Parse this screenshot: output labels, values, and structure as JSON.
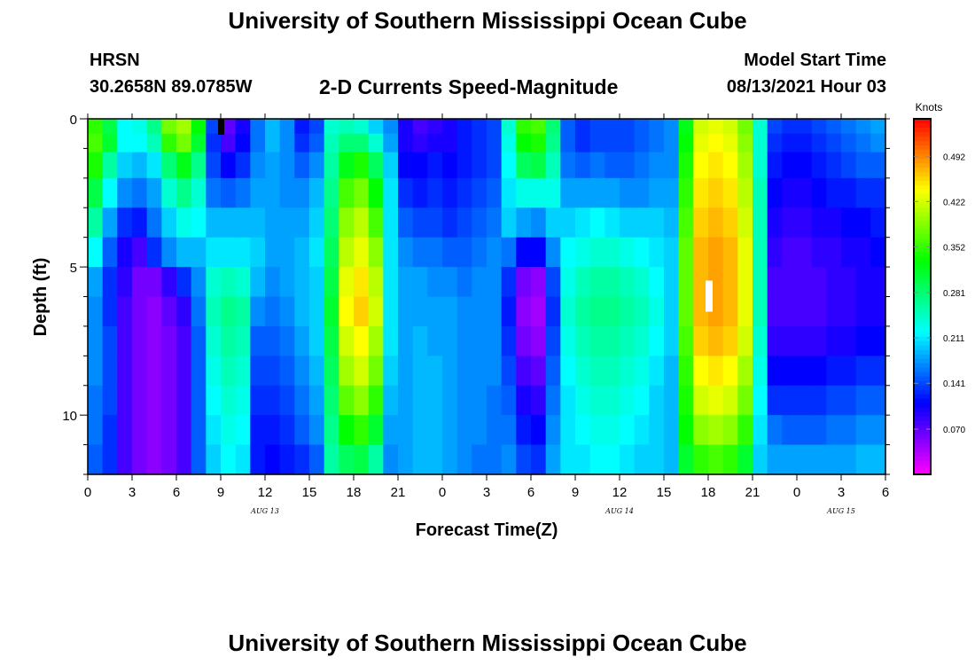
{
  "page": {
    "title_top": "University of Southern Mississippi Ocean Cube",
    "title_bottom": "University of Southern Mississippi Ocean Cube",
    "station": "HRSN",
    "coords": "30.2658N  89.0785W",
    "plot_title": "2-D Currents Speed-Magnitude",
    "model_start_label": "Model Start Time",
    "model_start_value": "08/13/2021 Hour 03"
  },
  "chart_data": {
    "type": "heatmap",
    "xlabel": "Forecast Time(Z)",
    "ylabel": "Depth (ft)",
    "x_tick_labels": [
      "0",
      "3",
      "6",
      "9",
      "12",
      "15",
      "18",
      "21",
      "0",
      "3",
      "6",
      "9",
      "12",
      "15",
      "18",
      "21",
      "0",
      "3",
      "6"
    ],
    "date_labels": [
      {
        "label": "AUG 13",
        "hour": 12
      },
      {
        "label": "AUG 14",
        "hour": 36
      },
      {
        "label": "AUG 15",
        "hour": 51
      }
    ],
    "x_range_hours": [
      0,
      54
    ],
    "y_ticks": [
      0,
      5,
      10
    ],
    "y_range_ft": [
      0,
      12
    ],
    "colorbar": {
      "unit_label": "Knots",
      "tick_labels": [
        "0.492",
        "0.422",
        "0.352",
        "0.281",
        "0.211",
        "0.141",
        "0.070"
      ],
      "tick_values": [
        0.492,
        0.422,
        0.352,
        0.281,
        0.211,
        0.141,
        0.07
      ],
      "range": [
        0.0,
        0.55
      ]
    },
    "markers": [
      {
        "hour": 9,
        "depth_ft": 0.3,
        "color": "#000000"
      },
      {
        "hour": 42,
        "depth_ft": 6,
        "color": "#ffffff"
      }
    ],
    "depth_levels_ft": [
      0.25,
      0.75,
      1.5,
      2.5,
      3.5,
      4.5,
      5.5,
      6.5,
      7.5,
      8.5,
      9.5,
      10.5,
      11.5
    ],
    "profiles": [
      {
        "hour": 0,
        "v": [
          0.35,
          0.36,
          0.34,
          0.3,
          0.26,
          0.22,
          0.18,
          0.17,
          0.17,
          0.17,
          0.16,
          0.16,
          0.15
        ]
      },
      {
        "hour": 1,
        "v": [
          0.3,
          0.31,
          0.26,
          0.22,
          0.18,
          0.15,
          0.13,
          0.13,
          0.14,
          0.14,
          0.14,
          0.13,
          0.13
        ]
      },
      {
        "hour": 2,
        "v": [
          0.22,
          0.22,
          0.2,
          0.17,
          0.13,
          0.1,
          0.09,
          0.08,
          0.08,
          0.08,
          0.08,
          0.08,
          0.08
        ]
      },
      {
        "hour": 3,
        "v": [
          0.23,
          0.22,
          0.19,
          0.16,
          0.12,
          0.08,
          0.06,
          0.06,
          0.06,
          0.06,
          0.06,
          0.06,
          0.06
        ]
      },
      {
        "hour": 4,
        "v": [
          0.27,
          0.25,
          0.21,
          0.18,
          0.16,
          0.13,
          0.06,
          0.05,
          0.05,
          0.05,
          0.05,
          0.05,
          0.05
        ]
      },
      {
        "hour": 5,
        "v": [
          0.38,
          0.35,
          0.28,
          0.24,
          0.2,
          0.17,
          0.09,
          0.07,
          0.06,
          0.06,
          0.06,
          0.06,
          0.06
        ]
      },
      {
        "hour": 6,
        "v": [
          0.4,
          0.38,
          0.32,
          0.27,
          0.23,
          0.19,
          0.13,
          0.09,
          0.08,
          0.08,
          0.08,
          0.08,
          0.08
        ]
      },
      {
        "hour": 7,
        "v": [
          0.33,
          0.31,
          0.27,
          0.24,
          0.22,
          0.19,
          0.17,
          0.16,
          0.15,
          0.15,
          0.15,
          0.15,
          0.15
        ]
      },
      {
        "hour": 8,
        "v": [
          0.14,
          0.13,
          0.14,
          0.16,
          0.19,
          0.21,
          0.24,
          0.25,
          0.24,
          0.23,
          0.22,
          0.21,
          0.2
        ]
      },
      {
        "hour": 9,
        "v": [
          0.07,
          0.08,
          0.11,
          0.15,
          0.19,
          0.21,
          0.25,
          0.27,
          0.26,
          0.25,
          0.24,
          0.23,
          0.22
        ]
      },
      {
        "hour": 10,
        "v": [
          0.1,
          0.11,
          0.13,
          0.16,
          0.19,
          0.21,
          0.24,
          0.26,
          0.25,
          0.24,
          0.23,
          0.22,
          0.21
        ]
      },
      {
        "hour": 11,
        "v": [
          0.16,
          0.16,
          0.17,
          0.18,
          0.19,
          0.2,
          0.19,
          0.17,
          0.15,
          0.14,
          0.13,
          0.12,
          0.12
        ]
      },
      {
        "hour": 12,
        "v": [
          0.19,
          0.19,
          0.18,
          0.18,
          0.18,
          0.18,
          0.17,
          0.16,
          0.15,
          0.14,
          0.13,
          0.12,
          0.11
        ]
      },
      {
        "hour": 13,
        "v": [
          0.17,
          0.17,
          0.17,
          0.17,
          0.18,
          0.18,
          0.18,
          0.17,
          0.16,
          0.15,
          0.14,
          0.13,
          0.12
        ]
      },
      {
        "hour": 14,
        "v": [
          0.12,
          0.13,
          0.15,
          0.17,
          0.18,
          0.19,
          0.19,
          0.19,
          0.18,
          0.17,
          0.16,
          0.15,
          0.13
        ]
      },
      {
        "hour": 15,
        "v": [
          0.14,
          0.15,
          0.17,
          0.19,
          0.2,
          0.21,
          0.2,
          0.2,
          0.2,
          0.19,
          0.18,
          0.17,
          0.15
        ]
      },
      {
        "hour": 16,
        "v": [
          0.24,
          0.25,
          0.26,
          0.27,
          0.28,
          0.29,
          0.3,
          0.31,
          0.3,
          0.29,
          0.28,
          0.27,
          0.26
        ]
      },
      {
        "hour": 17,
        "v": [
          0.25,
          0.28,
          0.32,
          0.36,
          0.39,
          0.41,
          0.43,
          0.44,
          0.42,
          0.4,
          0.37,
          0.33,
          0.29
        ]
      },
      {
        "hour": 18,
        "v": [
          0.24,
          0.28,
          0.34,
          0.38,
          0.41,
          0.43,
          0.45,
          0.46,
          0.44,
          0.42,
          0.39,
          0.35,
          0.3
        ]
      },
      {
        "hour": 19,
        "v": [
          0.2,
          0.24,
          0.29,
          0.33,
          0.36,
          0.39,
          0.41,
          0.42,
          0.4,
          0.38,
          0.35,
          0.31,
          0.26
        ]
      },
      {
        "hour": 20,
        "v": [
          0.17,
          0.18,
          0.2,
          0.21,
          0.21,
          0.21,
          0.21,
          0.21,
          0.21,
          0.2,
          0.19,
          0.18,
          0.17
        ]
      },
      {
        "hour": 21,
        "v": [
          0.1,
          0.1,
          0.11,
          0.13,
          0.15,
          0.17,
          0.18,
          0.18,
          0.18,
          0.18,
          0.18,
          0.18,
          0.18
        ]
      },
      {
        "hour": 22,
        "v": [
          0.08,
          0.09,
          0.11,
          0.12,
          0.14,
          0.16,
          0.18,
          0.18,
          0.19,
          0.19,
          0.19,
          0.19,
          0.19
        ]
      },
      {
        "hour": 23,
        "v": [
          0.09,
          0.1,
          0.12,
          0.13,
          0.14,
          0.16,
          0.17,
          0.18,
          0.18,
          0.19,
          0.19,
          0.19,
          0.19
        ]
      },
      {
        "hour": 24,
        "v": [
          0.1,
          0.1,
          0.11,
          0.12,
          0.13,
          0.15,
          0.17,
          0.18,
          0.18,
          0.18,
          0.18,
          0.18,
          0.18
        ]
      },
      {
        "hour": 25,
        "v": [
          0.12,
          0.12,
          0.12,
          0.13,
          0.14,
          0.15,
          0.16,
          0.17,
          0.17,
          0.17,
          0.17,
          0.17,
          0.17
        ]
      },
      {
        "hour": 26,
        "v": [
          0.13,
          0.13,
          0.13,
          0.14,
          0.15,
          0.16,
          0.17,
          0.17,
          0.17,
          0.17,
          0.17,
          0.17,
          0.16
        ]
      },
      {
        "hour": 27,
        "v": [
          0.14,
          0.14,
          0.14,
          0.15,
          0.16,
          0.17,
          0.17,
          0.17,
          0.17,
          0.17,
          0.16,
          0.16,
          0.16
        ]
      },
      {
        "hour": 28,
        "v": [
          0.24,
          0.23,
          0.22,
          0.21,
          0.2,
          0.16,
          0.13,
          0.12,
          0.13,
          0.14,
          0.15,
          0.16,
          0.17
        ]
      },
      {
        "hour": 29,
        "v": [
          0.35,
          0.33,
          0.29,
          0.23,
          0.18,
          0.11,
          0.06,
          0.05,
          0.06,
          0.08,
          0.1,
          0.12,
          0.14
        ]
      },
      {
        "hour": 30,
        "v": [
          0.36,
          0.34,
          0.3,
          0.23,
          0.17,
          0.11,
          0.05,
          0.04,
          0.05,
          0.07,
          0.09,
          0.11,
          0.13
        ]
      },
      {
        "hour": 31,
        "v": [
          0.28,
          0.27,
          0.25,
          0.23,
          0.2,
          0.17,
          0.14,
          0.13,
          0.14,
          0.15,
          0.16,
          0.17,
          0.18
        ]
      },
      {
        "hour": 32,
        "v": [
          0.15,
          0.15,
          0.16,
          0.18,
          0.2,
          0.22,
          0.23,
          0.24,
          0.23,
          0.22,
          0.21,
          0.21,
          0.21
        ]
      },
      {
        "hour": 33,
        "v": [
          0.13,
          0.13,
          0.15,
          0.18,
          0.21,
          0.23,
          0.25,
          0.26,
          0.25,
          0.24,
          0.23,
          0.22,
          0.21
        ]
      },
      {
        "hour": 34,
        "v": [
          0.14,
          0.14,
          0.16,
          0.18,
          0.22,
          0.24,
          0.26,
          0.27,
          0.26,
          0.25,
          0.24,
          0.23,
          0.22
        ]
      },
      {
        "hour": 35,
        "v": [
          0.14,
          0.14,
          0.15,
          0.18,
          0.21,
          0.24,
          0.26,
          0.27,
          0.26,
          0.25,
          0.24,
          0.23,
          0.22
        ]
      },
      {
        "hour": 36,
        "v": [
          0.14,
          0.14,
          0.15,
          0.17,
          0.2,
          0.23,
          0.25,
          0.26,
          0.25,
          0.24,
          0.23,
          0.22,
          0.21
        ]
      },
      {
        "hour": 37,
        "v": [
          0.15,
          0.15,
          0.16,
          0.17,
          0.2,
          0.22,
          0.24,
          0.25,
          0.24,
          0.23,
          0.22,
          0.21,
          0.2
        ]
      },
      {
        "hour": 38,
        "v": [
          0.16,
          0.16,
          0.17,
          0.18,
          0.2,
          0.21,
          0.22,
          0.23,
          0.22,
          0.21,
          0.2,
          0.2,
          0.2
        ]
      },
      {
        "hour": 39,
        "v": [
          0.17,
          0.17,
          0.17,
          0.18,
          0.19,
          0.2,
          0.2,
          0.2,
          0.2,
          0.19,
          0.19,
          0.19,
          0.19
        ]
      },
      {
        "hour": 40,
        "v": [
          0.32,
          0.33,
          0.34,
          0.35,
          0.36,
          0.37,
          0.37,
          0.37,
          0.36,
          0.35,
          0.34,
          0.33,
          0.31
        ]
      },
      {
        "hour": 41,
        "v": [
          0.42,
          0.43,
          0.44,
          0.45,
          0.46,
          0.47,
          0.47,
          0.47,
          0.46,
          0.44,
          0.42,
          0.39,
          0.35
        ]
      },
      {
        "hour": 42,
        "v": [
          0.43,
          0.44,
          0.45,
          0.46,
          0.47,
          0.48,
          0.48,
          0.48,
          0.47,
          0.45,
          0.43,
          0.4,
          0.36
        ]
      },
      {
        "hour": 43,
        "v": [
          0.42,
          0.43,
          0.44,
          0.45,
          0.46,
          0.47,
          0.47,
          0.47,
          0.46,
          0.44,
          0.42,
          0.39,
          0.35
        ]
      },
      {
        "hour": 44,
        "v": [
          0.38,
          0.39,
          0.4,
          0.41,
          0.42,
          0.43,
          0.43,
          0.43,
          0.42,
          0.4,
          0.38,
          0.35,
          0.31
        ]
      },
      {
        "hour": 45,
        "v": [
          0.24,
          0.24,
          0.24,
          0.25,
          0.25,
          0.25,
          0.25,
          0.25,
          0.24,
          0.23,
          0.22,
          0.21,
          0.2
        ]
      },
      {
        "hour": 46,
        "v": [
          0.14,
          0.13,
          0.12,
          0.11,
          0.1,
          0.09,
          0.08,
          0.08,
          0.09,
          0.11,
          0.13,
          0.16,
          0.18
        ]
      },
      {
        "hour": 47,
        "v": [
          0.13,
          0.12,
          0.11,
          0.1,
          0.09,
          0.08,
          0.08,
          0.08,
          0.09,
          0.11,
          0.13,
          0.15,
          0.18
        ]
      },
      {
        "hour": 48,
        "v": [
          0.13,
          0.12,
          0.11,
          0.1,
          0.09,
          0.08,
          0.08,
          0.08,
          0.09,
          0.11,
          0.13,
          0.15,
          0.18
        ]
      },
      {
        "hour": 49,
        "v": [
          0.14,
          0.13,
          0.12,
          0.11,
          0.1,
          0.09,
          0.08,
          0.08,
          0.09,
          0.11,
          0.13,
          0.15,
          0.18
        ]
      },
      {
        "hour": 50,
        "v": [
          0.15,
          0.14,
          0.13,
          0.12,
          0.1,
          0.09,
          0.09,
          0.09,
          0.1,
          0.12,
          0.14,
          0.16,
          0.18
        ]
      },
      {
        "hour": 51,
        "v": [
          0.16,
          0.15,
          0.14,
          0.12,
          0.11,
          0.1,
          0.09,
          0.09,
          0.1,
          0.12,
          0.14,
          0.16,
          0.18
        ]
      },
      {
        "hour": 52,
        "v": [
          0.17,
          0.16,
          0.15,
          0.13,
          0.11,
          0.1,
          0.1,
          0.1,
          0.11,
          0.13,
          0.15,
          0.17,
          0.19
        ]
      },
      {
        "hour": 53,
        "v": [
          0.18,
          0.17,
          0.15,
          0.13,
          0.12,
          0.11,
          0.1,
          0.1,
          0.11,
          0.13,
          0.15,
          0.17,
          0.19
        ]
      }
    ]
  }
}
